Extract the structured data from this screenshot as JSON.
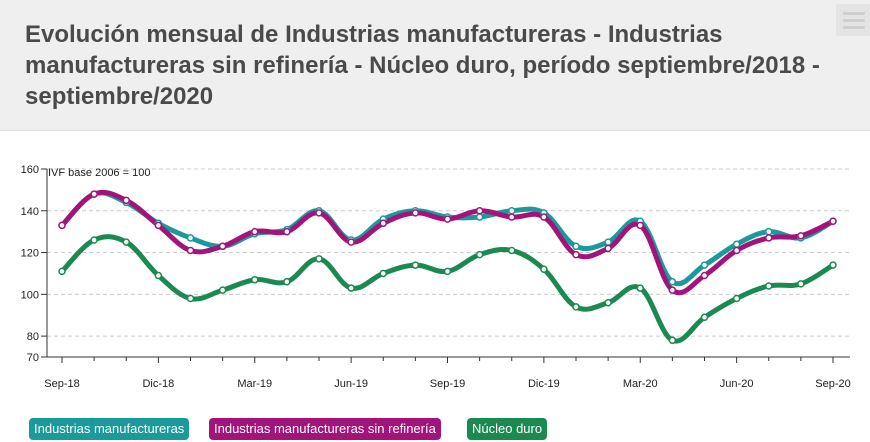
{
  "header": {
    "title": "Evolución mensual de Industrias manufactureras - Industrias manufactureras sin refinería - Núcleo duro, período septiembre/2018 - septiembre/2020",
    "menu_icon": "hamburger-menu-icon"
  },
  "chart_data": {
    "type": "line",
    "unit_label": "IVF base 2006 = 100",
    "x": [
      "Sep-18",
      "Oct-18",
      "Nov-18",
      "Dic-18",
      "Ene-19",
      "Feb-19",
      "Mar-19",
      "Abr-19",
      "May-19",
      "Jun-19",
      "Jul-19",
      "Ago-19",
      "Sep-19",
      "Oct-19",
      "Nov-19",
      "Dic-19",
      "Ene-20",
      "Feb-20",
      "Mar-20",
      "Abr-20",
      "May-20",
      "Jun-20",
      "Jul-20",
      "Ago-20",
      "Sep-20"
    ],
    "x_tick_labels": [
      "Sep-18",
      "Dic-18",
      "Mar-19",
      "Jun-19",
      "Sep-19",
      "Dic-19",
      "Mar-20",
      "Jun-20",
      "Sep-20"
    ],
    "y_ticks": [
      70,
      80,
      100,
      120,
      140,
      160
    ],
    "ylim": [
      70,
      160
    ],
    "grid": true,
    "legend_position": "bottom-left",
    "series": [
      {
        "name": "Industrias manufactureras",
        "color": "#1a9a9b",
        "values": [
          133,
          148,
          144,
          134,
          127,
          123,
          129,
          131,
          140,
          126,
          136,
          140,
          137,
          137,
          140,
          139,
          123,
          125,
          135,
          106,
          114,
          124,
          130,
          127,
          135
        ]
      },
      {
        "name": "Industrias manufactureras sin refinería",
        "color": "#a3147a",
        "values": [
          133,
          148,
          145,
          133,
          121,
          123,
          130,
          130,
          139,
          125,
          134,
          139,
          136,
          140,
          137,
          137,
          119,
          122,
          133,
          102,
          109,
          121,
          127,
          128,
          135
        ]
      },
      {
        "name": "Núcleo duro",
        "color": "#1a8a50",
        "values": [
          111,
          126,
          125,
          109,
          98,
          102,
          107,
          106,
          117,
          103,
          110,
          114,
          111,
          119,
          121,
          112,
          94,
          96,
          103,
          78,
          89,
          98,
          104,
          105,
          114
        ]
      }
    ]
  }
}
